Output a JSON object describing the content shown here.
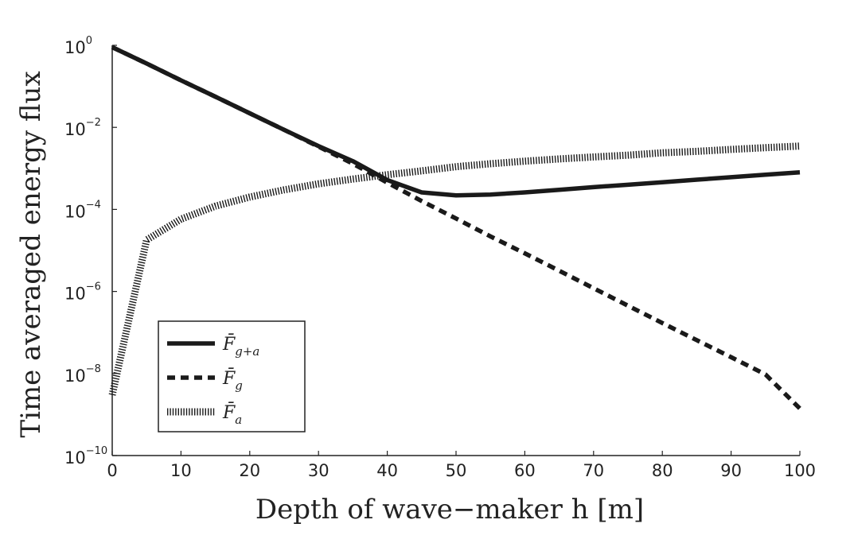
{
  "chart_data": {
    "type": "line",
    "xlabel": "Depth of wave−maker h [m]",
    "ylabel": "Time averaged energy flux",
    "xlim": [
      0,
      100
    ],
    "ylim": [
      1e-10,
      1
    ],
    "yscale": "log",
    "grid": false,
    "legend_position": "lower-left",
    "x_ticks": [
      "0",
      "10",
      "20",
      "30",
      "40",
      "50",
      "60",
      "70",
      "80",
      "90",
      "100"
    ],
    "y_ticks": [
      {
        "base": "10",
        "exp": "0"
      },
      {
        "base": "10",
        "exp": "−2"
      },
      {
        "base": "10",
        "exp": "−4"
      },
      {
        "base": "10",
        "exp": "−6"
      },
      {
        "base": "10",
        "exp": "−8"
      },
      {
        "base": "10",
        "exp": "−10"
      }
    ],
    "x": [
      0,
      5,
      10,
      15,
      20,
      25,
      30,
      35,
      40,
      45,
      50,
      55,
      60,
      65,
      70,
      75,
      80,
      85,
      90,
      95,
      100
    ],
    "series": [
      {
        "name": "F̄",
        "sub": "g+a",
        "style": "solid",
        "color": "#1a1a1a",
        "values": [
          0.9,
          0.36,
          0.14,
          0.056,
          0.022,
          0.0087,
          0.0035,
          0.0015,
          0.00052,
          0.00026,
          0.00022,
          0.00023,
          0.00026,
          0.0003,
          0.00035,
          0.0004,
          0.00046,
          0.00053,
          0.00061,
          0.0007,
          0.0008
        ]
      },
      {
        "name": "F̄",
        "sub": "g",
        "style": "dashed",
        "color": "#1a1a1a",
        "values": [
          0.9,
          0.36,
          0.14,
          0.056,
          0.022,
          0.0087,
          0.0034,
          0.0013,
          0.00045,
          0.00016,
          6e-05,
          2.2e-05,
          8.5e-06,
          3.2e-06,
          1.2e-06,
          4.5e-07,
          1.7e-07,
          6.5e-08,
          2.5e-08,
          9.5e-09,
          1.4e-09
        ]
      },
      {
        "name": "F̄",
        "sub": "a",
        "style": "dotted",
        "color": "#1a1a1a",
        "values": [
          3e-09,
          1.8e-05,
          5.8e-05,
          0.00012,
          0.0002,
          0.0003,
          0.00042,
          0.00055,
          0.0007,
          0.00087,
          0.0011,
          0.0013,
          0.0015,
          0.0017,
          0.0019,
          0.0021,
          0.0024,
          0.0026,
          0.0029,
          0.0032,
          0.0035
        ]
      }
    ]
  }
}
